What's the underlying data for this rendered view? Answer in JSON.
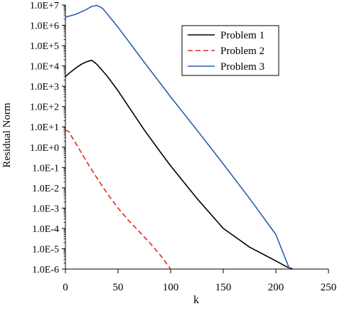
{
  "chart_data": {
    "type": "line",
    "xlabel": "k",
    "ylabel": "Residual Norm",
    "y_scale": "log",
    "xlim": [
      0,
      250
    ],
    "ylim": [
      1e-06,
      10000000.0
    ],
    "x_ticks": [
      0,
      50,
      100,
      150,
      200,
      250
    ],
    "x_tick_labels": [
      "0",
      "50",
      "100",
      "150",
      "200",
      "250"
    ],
    "y_ticks": [
      1e-06,
      1e-05,
      0.0001,
      0.001,
      0.01,
      0.1,
      1.0,
      10.0,
      100.0,
      1000.0,
      10000.0,
      100000.0,
      1000000.0,
      10000000.0
    ],
    "y_tick_labels": [
      "1.0E-6",
      "1.0E-5",
      "1.0E-4",
      "1.0E-3",
      "1.0E-2",
      "1.0E-1",
      "1.0E+0",
      "1.0E+1",
      "1.0E+2",
      "1.0E+3",
      "1.0E+4",
      "1.0E+5",
      "1.0E+6",
      "1.0E+7"
    ],
    "grid": false,
    "legend_position": "top-right",
    "series": [
      {
        "name": "Problem 1",
        "color": "#000000",
        "dash": "solid",
        "x": [
          0,
          5,
          10,
          15,
          20,
          25,
          30,
          40,
          50,
          60,
          75,
          90,
          100,
          125,
          150,
          175,
          200,
          210,
          216
        ],
        "y": [
          3000,
          5000,
          8000,
          12000,
          16000,
          19000,
          12000,
          3000,
          600,
          100,
          7,
          0.6,
          0.12,
          0.003,
          0.0001,
          1.2e-05,
          2.5e-06,
          1.3e-06,
          1e-06
        ]
      },
      {
        "name": "Problem 2",
        "color": "#e8261c",
        "dash": "dashed",
        "x": [
          0,
          3,
          10,
          20,
          30,
          40,
          50,
          60,
          70,
          80,
          90,
          100
        ],
        "y": [
          7,
          6,
          1.5,
          0.2,
          0.03,
          0.005,
          0.001,
          0.00025,
          7e-05,
          2e-05,
          5e-06,
          1e-06
        ]
      },
      {
        "name": "Problem 3",
        "color": "#2b5da8",
        "dash": "solid",
        "x": [
          0,
          10,
          20,
          25,
          30,
          35,
          40,
          50,
          75,
          100,
          125,
          150,
          175,
          200,
          213
        ],
        "y": [
          2500000,
          3500000,
          6000000,
          8500000,
          9500000,
          7000000,
          3500000,
          800000,
          15000,
          300,
          7,
          0.15,
          0.003,
          5e-05,
          1e-06
        ]
      }
    ]
  }
}
